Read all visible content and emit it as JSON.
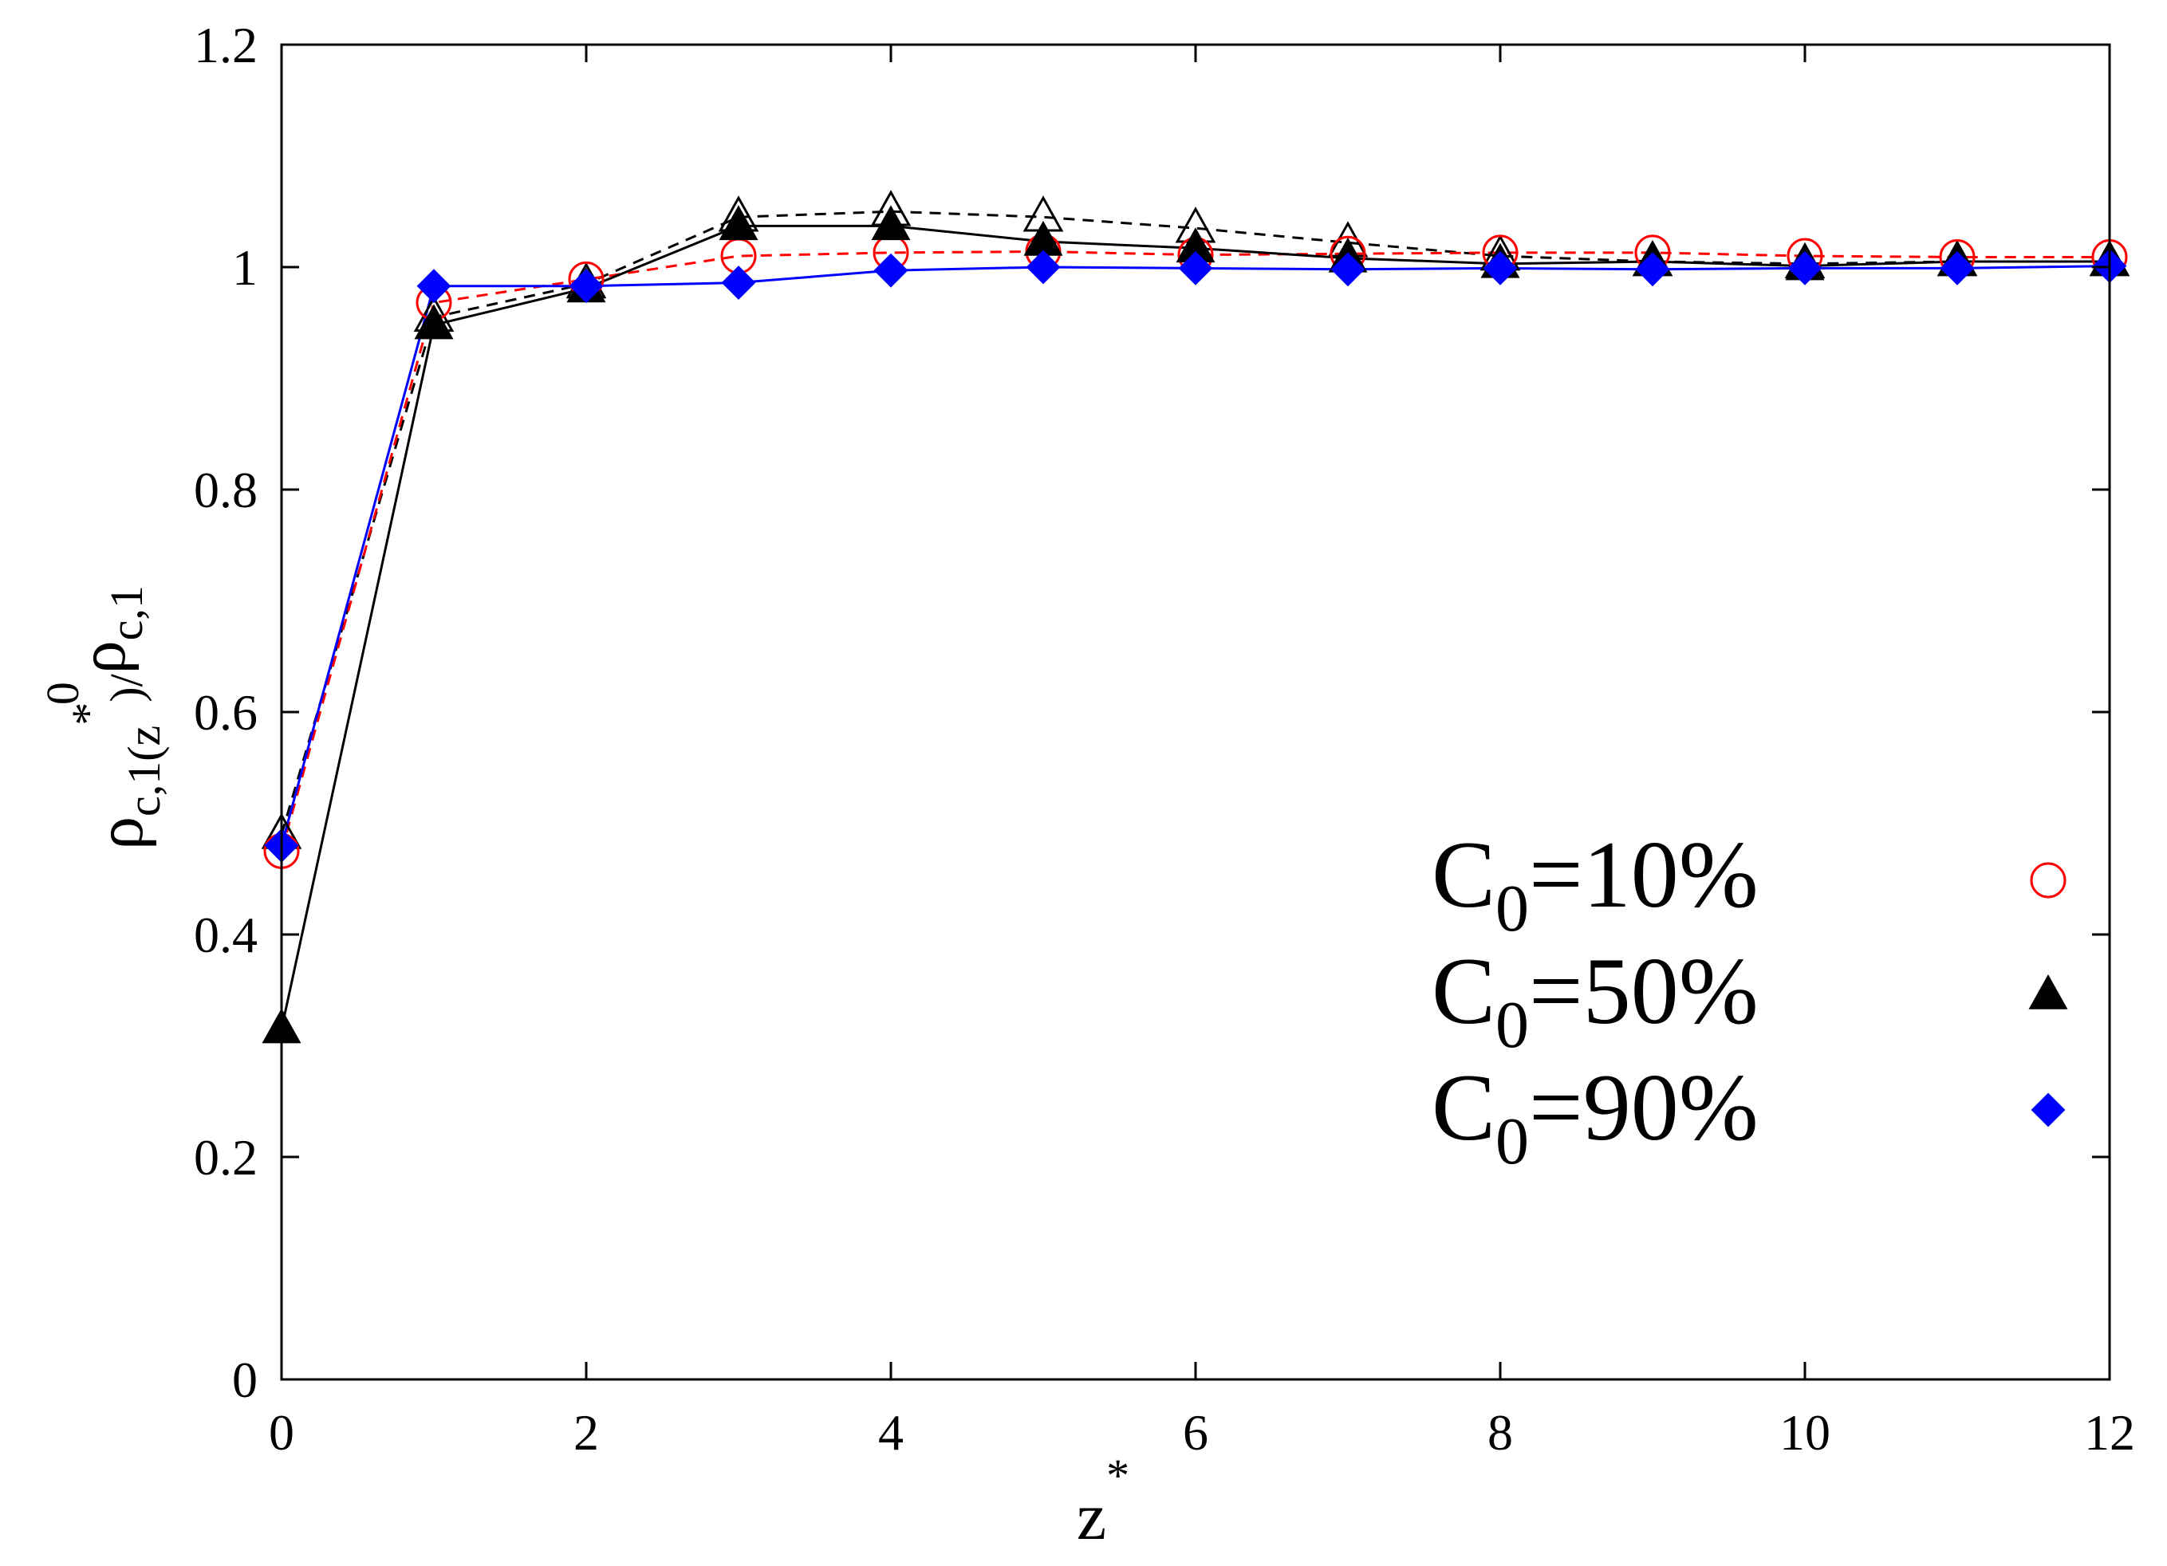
{
  "chart_data": {
    "type": "line",
    "title": "",
    "xlabel": {
      "main": "z",
      "sup": "*"
    },
    "ylabel": {
      "rho": "ρ",
      "num_sub": "c,1(z",
      "num_sup": "*",
      "num_close": ")",
      "slash": "/",
      "den_sub": "c,1",
      "den_sup": "0"
    },
    "xlim": [
      0,
      12
    ],
    "ylim": [
      0,
      1.2
    ],
    "x_ticks": [
      0,
      2,
      4,
      6,
      8,
      10,
      12
    ],
    "x_tick_labels": [
      "0",
      "2",
      "4",
      "6",
      "8",
      "10",
      "12"
    ],
    "y_ticks": [
      0,
      0.2,
      0.4,
      0.6,
      0.8,
      1,
      1.2
    ],
    "y_tick_labels": [
      "0",
      "0.2",
      "0.4",
      "0.6",
      "0.8",
      "1",
      "1.2"
    ],
    "grid": false,
    "legend_position": "bottom-right",
    "x": [
      0,
      1,
      2,
      3,
      4,
      5,
      6,
      7,
      8,
      9,
      10,
      11,
      12
    ],
    "series": [
      {
        "legend": {
          "c": "C",
          "sub": "0",
          "rest": "=10%"
        },
        "color": "#ff0000",
        "marker": "open-circle",
        "line": "dashed",
        "in_legend": true,
        "values": [
          0.475,
          0.968,
          0.989,
          1.01,
          1.013,
          1.014,
          1.011,
          1.012,
          1.013,
          1.013,
          1.01,
          1.009,
          1.009
        ]
      },
      {
        "legend": {
          "c": "C",
          "sub": "0",
          "rest": "=50%"
        },
        "color": "#000000",
        "marker": "filled-triangle",
        "line": "solid",
        "in_legend": true,
        "values": [
          0.315,
          0.948,
          0.981,
          1.037,
          1.037,
          1.023,
          1.017,
          1.008,
          1.003,
          1.005,
          1.001,
          1.005,
          1.005
        ]
      },
      {
        "legend": {
          "c": "C",
          "sub": "0",
          "rest": "=90%"
        },
        "color": "#0000ff",
        "marker": "filled-diamond",
        "line": "solid",
        "in_legend": true,
        "values": [
          0.48,
          0.983,
          0.983,
          0.986,
          0.997,
          1.0,
          0.999,
          0.998,
          0.999,
          0.998,
          0.999,
          0.999,
          1.001
        ]
      },
      {
        "color": "#000000",
        "marker": "open-triangle",
        "line": "dashed",
        "in_legend": false,
        "values": [
          0.49,
          0.955,
          0.985,
          1.045,
          1.05,
          1.045,
          1.035,
          1.022,
          1.01,
          1.005,
          1.003,
          1.005,
          1.005
        ]
      }
    ]
  }
}
